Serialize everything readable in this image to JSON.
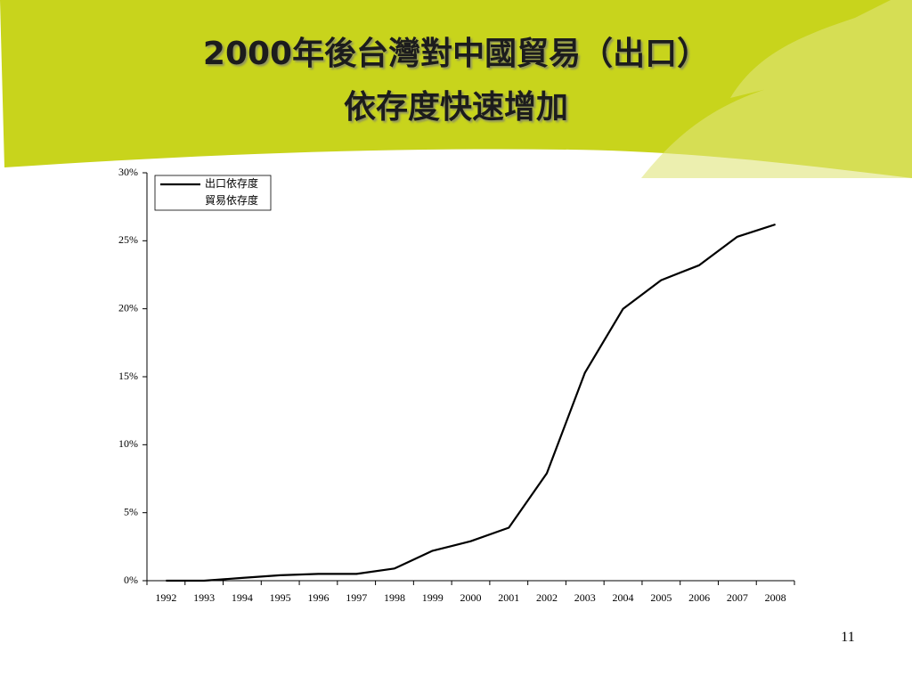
{
  "page_number": "11",
  "chart_data": {
    "type": "line",
    "title_lines": [
      "2000年後台灣對中國貿易（出口）",
      "依存度快速增加"
    ],
    "categories": [
      "1992",
      "1993",
      "1994",
      "1995",
      "1996",
      "1997",
      "1998",
      "1999",
      "2000",
      "2001",
      "2002",
      "2003",
      "2004",
      "2005",
      "2006",
      "2007",
      "2008"
    ],
    "series": [
      {
        "name": "出口依存度",
        "color": "#000000",
        "values": [
          0,
          0,
          0.2,
          0.4,
          0.5,
          0.5,
          0.9,
          2.2,
          2.9,
          3.9,
          7.9,
          15.3,
          20.0,
          22.1,
          23.2,
          25.3,
          26.2
        ]
      },
      {
        "name": "貿易依存度",
        "color": "#ffffff",
        "values": [
          null,
          null,
          null,
          null,
          null,
          null,
          null,
          null,
          null,
          null,
          null,
          null,
          null,
          null,
          null,
          null,
          null
        ]
      }
    ],
    "ylim": [
      0,
      30
    ],
    "yticks": [
      {
        "value": 0,
        "label": "0%"
      },
      {
        "value": 5,
        "label": "5%"
      },
      {
        "value": 10,
        "label": "10%"
      },
      {
        "value": 15,
        "label": "15%"
      },
      {
        "value": 20,
        "label": "20%"
      },
      {
        "value": 25,
        "label": "25%"
      },
      {
        "value": 30,
        "label": "30%"
      }
    ],
    "legend": "upper left"
  }
}
